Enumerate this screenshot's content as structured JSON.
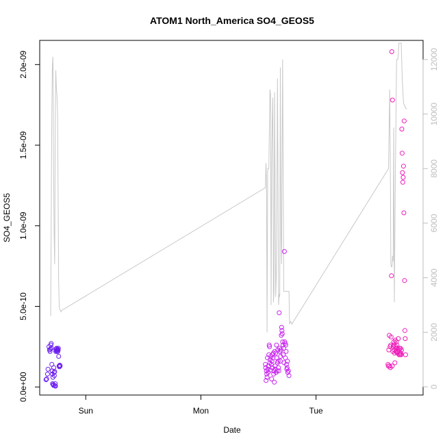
{
  "chart_data": {
    "type": "scatter",
    "title": "ATOM1 North_America SO4_GEOS5",
    "xlabel": "Date",
    "ylabel": "SO4_GEOS5",
    "x_unit": "days",
    "x_ticks": [
      {
        "label": "Sun",
        "value": 1
      },
      {
        "label": "Mon",
        "value": 2
      },
      {
        "label": "Tue",
        "value": 3
      }
    ],
    "xlim": [
      0.6,
      3.93
    ],
    "ylim": [
      -5e-11,
      2.15e-09
    ],
    "y_ticks": [
      {
        "label": "0.0e+00",
        "value": 0
      },
      {
        "label": "5.0e-10",
        "value": 5e-10
      },
      {
        "label": "1.0e-09",
        "value": 1e-09
      },
      {
        "label": "1.5e-09",
        "value": 1.5e-09
      },
      {
        "label": "2.0e-09",
        "value": 2e-09
      }
    ],
    "y2lim": [
      -300,
      12700
    ],
    "y2_ticks": [
      {
        "label": "0",
        "value": 0
      },
      {
        "label": "2000",
        "value": 2000
      },
      {
        "label": "4000",
        "value": 4000
      },
      {
        "label": "6000",
        "value": 6000
      },
      {
        "label": "8000",
        "value": 8000
      },
      {
        "label": "10000",
        "value": 10000
      },
      {
        "label": "12000",
        "value": 12000
      }
    ],
    "colors": {
      "day1_points": "#6a1bf0",
      "day2_points": "#c822f0",
      "day3_points": "#ee1ab8",
      "secondary_line": "#c8c8c8",
      "axis": "#000000",
      "secondary_axis": "#bdbdbd"
    },
    "secondary_line": {
      "x": [
        0.695,
        0.705,
        0.71,
        0.715,
        0.72,
        0.725,
        0.73,
        0.735,
        0.74,
        0.745,
        0.75,
        0.755,
        0.76,
        0.765,
        0.77,
        0.775,
        0.78,
        0.785,
        0.79,
        2.56,
        2.565,
        2.57,
        2.575,
        2.58,
        2.585,
        2.59,
        2.6,
        2.605,
        2.61,
        2.615,
        2.62,
        2.625,
        2.63,
        2.635,
        2.64,
        2.65,
        2.655,
        2.66,
        2.665,
        2.67,
        2.675,
        2.68,
        2.685,
        2.69,
        2.695,
        2.7,
        2.71,
        2.72,
        2.73,
        2.735,
        2.74,
        2.745,
        2.75,
        2.755,
        2.76,
        2.765,
        2.77,
        2.78,
        2.79,
        3.63,
        3.64,
        3.645,
        3.65,
        3.655,
        3.66,
        3.665,
        3.67,
        3.675,
        3.68,
        3.69,
        3.7,
        3.71,
        3.715,
        3.72,
        3.73,
        3.74,
        3.75,
        3.76,
        3.77,
        3.78,
        3.79
      ],
      "y": [
        2600,
        10000,
        11800,
        12100,
        8500,
        5700,
        4500,
        9700,
        11600,
        10900,
        10700,
        10000,
        7000,
        3800,
        2900,
        2850,
        2800,
        2750,
        2800,
        7300,
        8200,
        7500,
        2000,
        8000,
        8000,
        8000,
        10900,
        10700,
        3000,
        8300,
        9800,
        10600,
        3100,
        3500,
        10800,
        3300,
        4100,
        6400,
        11300,
        7300,
        3000,
        3400,
        3300,
        11700,
        5600,
        4500,
        12000,
        3500,
        3500,
        3500,
        3500,
        3500,
        3500,
        3500,
        3500,
        3500,
        2300,
        2400,
        2300,
        8000,
        10900,
        8200,
        4500,
        4400,
        4400,
        4800,
        4600,
        9500,
        3100,
        8000,
        12000,
        12000,
        12200,
        12600,
        12600,
        12600,
        11200,
        10400,
        10300,
        10200,
        10200
      ]
    },
    "series": [
      {
        "x": [
          0.655,
          0.66,
          0.668,
          0.672,
          0.68,
          0.685,
          0.69,
          0.693,
          0.697,
          0.7,
          0.702,
          0.705,
          0.708,
          0.71,
          0.712,
          0.715,
          0.717,
          0.72,
          0.722,
          0.725,
          0.727,
          0.73,
          0.732,
          0.735,
          0.737,
          0.74,
          0.742,
          0.745,
          0.747,
          0.75,
          0.752,
          0.755,
          0.757,
          0.76,
          0.762,
          0.765,
          0.768,
          0.771,
          0.774,
          0.777
        ],
        "y": [
          4.5e-11,
          5e-11,
          8e-11,
          1.1e-10,
          2.5e-10,
          2.3e-10,
          2.2e-10,
          2.35e-10,
          2.6e-10,
          2.7e-10,
          2.4e-10,
          1.4e-10,
          1e-10,
          8e-11,
          2e-11,
          6e-11,
          1.5e-11,
          1e-11,
          1.2e-10,
          9e-11,
          7e-11,
          9.5e-11,
          8e-12,
          2e-11,
          5e-12,
          2.2e-10,
          2.35e-10,
          2.25e-10,
          2.4e-10,
          2.3e-10,
          2.2e-10,
          2.35e-10,
          2.2e-10,
          2.3e-10,
          2.4e-10,
          1.9e-10,
          1.3e-10,
          1.25e-10,
          1.35e-10,
          1.3e-10
        ]
      },
      {
        "x": [
          2.56,
          2.563,
          2.566,
          2.569,
          2.572,
          2.575,
          2.578,
          2.581,
          2.584,
          2.587,
          2.59,
          2.593,
          2.596,
          2.599,
          2.602,
          2.605,
          2.608,
          2.611,
          2.614,
          2.617,
          2.62,
          2.623,
          2.626,
          2.629,
          2.632,
          2.635,
          2.638,
          2.641,
          2.644,
          2.647,
          2.65,
          2.653,
          2.656,
          2.659,
          2.662,
          2.665,
          2.668,
          2.671,
          2.674,
          2.677,
          2.68,
          2.683,
          2.686,
          2.689,
          2.692,
          2.695,
          2.698,
          2.701,
          2.704,
          2.707,
          2.71,
          2.713,
          2.716,
          2.719,
          2.722,
          2.725,
          2.728,
          2.731,
          2.734,
          2.737,
          2.74,
          2.743,
          2.746,
          2.749,
          2.752,
          2.755,
          2.76,
          2.765
        ],
        "y": [
          1.4e-10,
          1.2e-10,
          4e-11,
          1e-10,
          8e-11,
          6e-11,
          1.8e-10,
          1.1e-10,
          9e-11,
          1.3e-10,
          2e-10,
          2.6e-10,
          2.5e-10,
          1.5e-10,
          1.7e-10,
          1.05e-10,
          1.9e-10,
          1.4e-10,
          5e-11,
          1.6e-10,
          1.2e-10,
          2e-10,
          1.8e-10,
          2.1e-10,
          8e-11,
          1e-10,
          3e-11,
          2.2e-10,
          1.3e-10,
          1.1e-10,
          2.1e-10,
          9e-11,
          2.6e-10,
          1.8e-10,
          1e-10,
          1.5e-10,
          2.3e-10,
          1.6e-10,
          1.2e-10,
          1e-10,
          4.6e-10,
          2.4e-10,
          2.2e-10,
          1.6e-10,
          1.9e-10,
          2.3e-10,
          3.2e-10,
          3.7e-10,
          3.5e-10,
          3.3e-10,
          2.8e-10,
          2.6e-10,
          2e-10,
          2.4e-10,
          1.5e-10,
          8.4e-10,
          2.8e-10,
          2.7e-10,
          1.8e-10,
          2.6e-10,
          2.2e-10,
          1.4e-10,
          1.1e-10,
          1.2e-10,
          1.6e-10,
          9e-11,
          1e-10,
          7e-11
        ]
      },
      {
        "x": [
          3.625,
          3.628,
          3.632,
          3.636,
          3.64,
          3.643,
          3.646,
          3.649,
          3.652,
          3.655,
          3.658,
          3.661,
          3.664,
          3.667,
          3.67,
          3.673,
          3.676,
          3.679,
          3.682,
          3.685,
          3.688,
          3.691,
          3.694,
          3.697,
          3.7,
          3.703,
          3.706,
          3.709,
          3.712,
          3.715,
          3.718,
          3.721,
          3.724,
          3.727,
          3.73,
          3.733,
          3.736,
          3.739,
          3.742,
          3.745,
          3.748,
          3.751,
          3.754,
          3.757,
          3.76,
          3.763,
          3.766,
          3.769,
          3.772,
          3.775,
          3.778
        ],
        "y": [
          1.4e-10,
          1.3e-10,
          2.3e-10,
          3.2e-10,
          1.3e-10,
          2.5e-10,
          1.2e-10,
          2.6e-10,
          3.1e-10,
          6.9e-10,
          2.08e-09,
          1.3e-10,
          1.78e-09,
          2.2e-10,
          2.5e-10,
          2.6e-10,
          2.8e-10,
          2.3e-10,
          2.1e-10,
          1.5e-10,
          2.9e-10,
          2.5e-10,
          2.2e-10,
          2.8e-10,
          2.4e-10,
          2.6e-10,
          2.1e-10,
          2.2e-10,
          2.4e-10,
          3e-10,
          2.3e-10,
          2e-10,
          2.1e-10,
          2.4e-10,
          2e-10,
          2.4e-10,
          2.1e-10,
          2e-10,
          2.3e-10,
          1.6e-09,
          1.45e-09,
          1.33e-09,
          1.27e-09,
          1.3e-09,
          1.37e-09,
          1.08e-09,
          1.65e-09,
          6.6e-10,
          3.5e-10,
          3e-10,
          2e-10
        ]
      }
    ]
  }
}
